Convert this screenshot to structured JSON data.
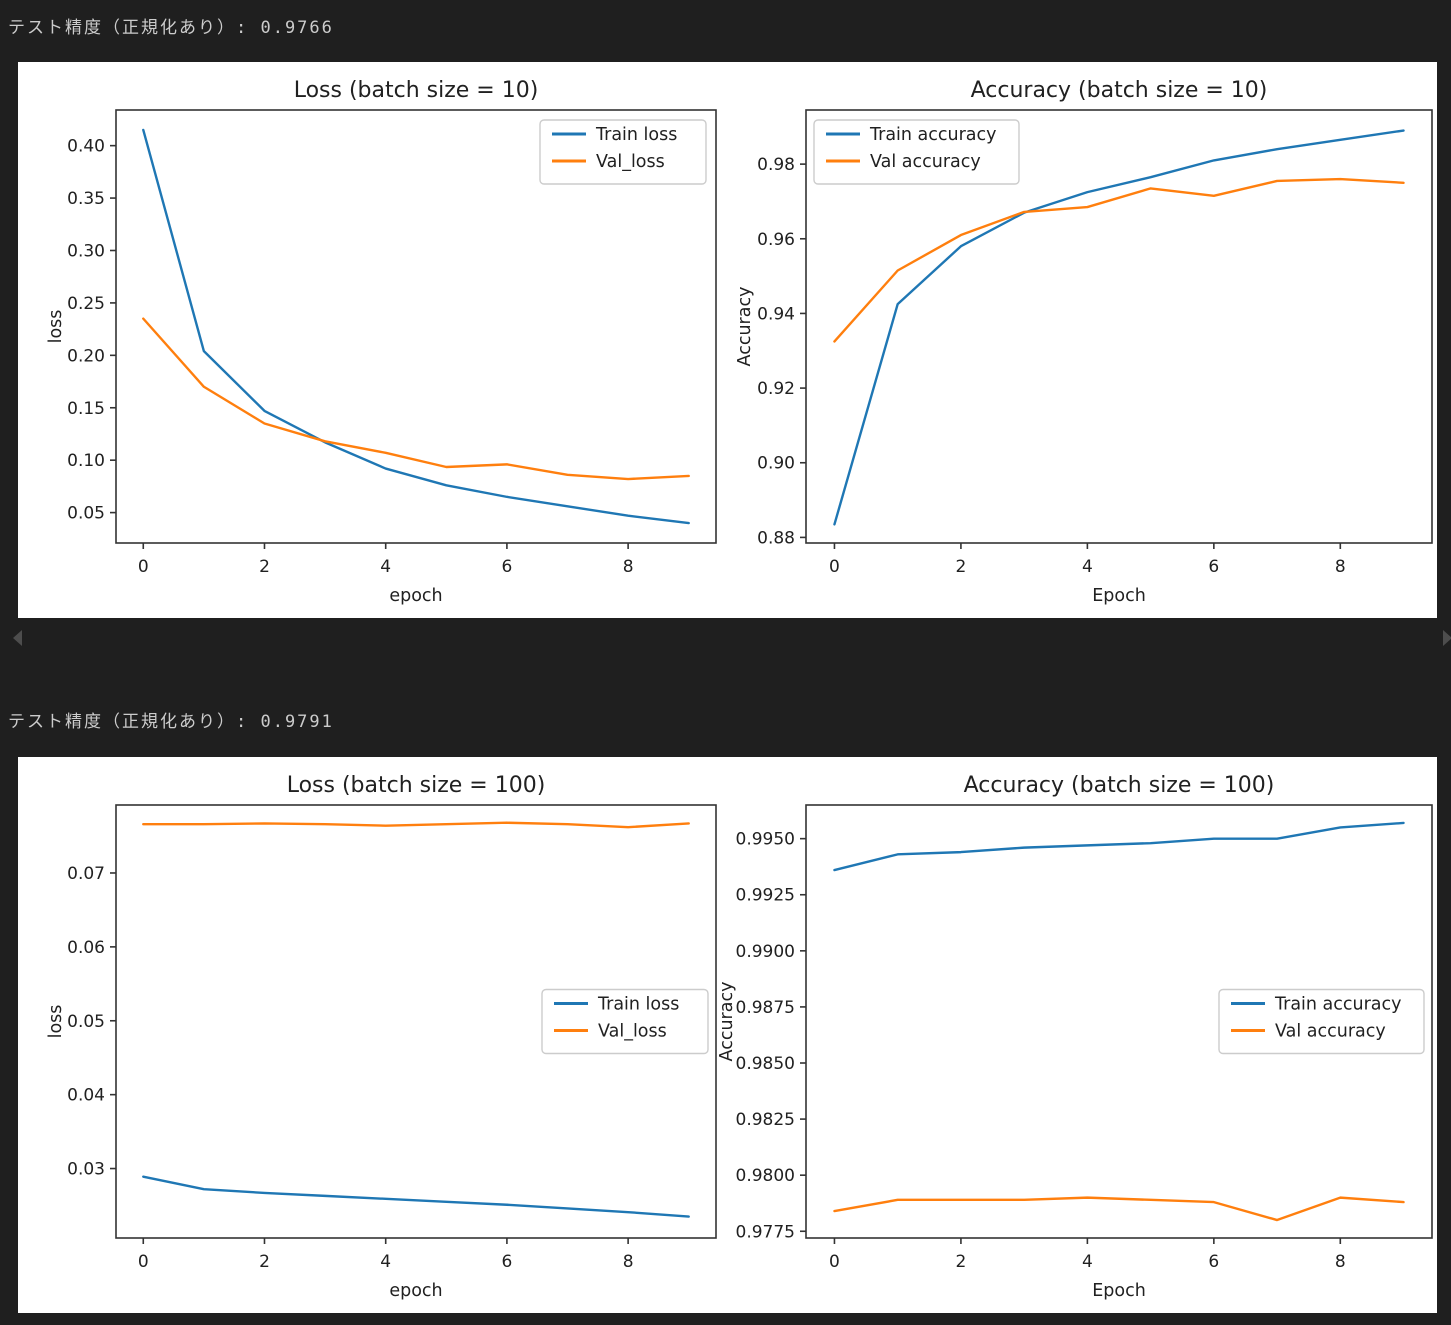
{
  "page": {
    "background": "#1f1f1f",
    "figure_background": "#ffffff"
  },
  "outputs": [
    {
      "text": "テスト精度（正規化あり）: 0.9766",
      "value": "0.9766"
    },
    {
      "text": "テスト精度（正規化あり）: 0.9791",
      "value": "0.9791"
    }
  ],
  "scroll_arrows": {
    "left": "left-triangle",
    "right": "right-triangle",
    "color": "#4d4d4d"
  },
  "colors": {
    "train": "#1f77b4",
    "val": "#ff7f0e",
    "chart_text": "#212121",
    "spine": "#333333",
    "legend_border": "#cccccc",
    "legend_bg": "#ffffff"
  },
  "chart_data": [
    {
      "id": "loss-batch-10",
      "type": "line",
      "title": "Loss (batch size = 10)",
      "xlabel": "epoch",
      "ylabel": "loss",
      "x": [
        0,
        1,
        2,
        3,
        4,
        5,
        6,
        7,
        8,
        9
      ],
      "xlim": [
        -0.45,
        9.45
      ],
      "ylim": [
        0.021,
        0.434
      ],
      "grid": false,
      "xticks": [
        {
          "v": 0,
          "label": "0"
        },
        {
          "v": 2,
          "label": "2"
        },
        {
          "v": 4,
          "label": "4"
        },
        {
          "v": 6,
          "label": "6"
        },
        {
          "v": 8,
          "label": "8"
        }
      ],
      "yticks": [
        {
          "v": 0.05,
          "label": "0.05"
        },
        {
          "v": 0.1,
          "label": "0.10"
        },
        {
          "v": 0.15,
          "label": "0.15"
        },
        {
          "v": 0.2,
          "label": "0.20"
        },
        {
          "v": 0.25,
          "label": "0.25"
        },
        {
          "v": 0.3,
          "label": "0.30"
        },
        {
          "v": 0.35,
          "label": "0.35"
        },
        {
          "v": 0.4,
          "label": "0.40"
        }
      ],
      "legend": "upper-right",
      "series": [
        {
          "name": "Train loss",
          "color_key": "train",
          "values": [
            0.415,
            0.204,
            0.147,
            0.117,
            0.092,
            0.076,
            0.065,
            0.056,
            0.047,
            0.04
          ]
        },
        {
          "name": "Val_loss",
          "color_key": "val",
          "values": [
            0.235,
            0.17,
            0.135,
            0.118,
            0.107,
            0.0935,
            0.096,
            0.086,
            0.082,
            0.085
          ]
        }
      ]
    },
    {
      "id": "accuracy-batch-10",
      "type": "line",
      "title": "Accuracy (batch size = 10)",
      "xlabel": "Epoch",
      "ylabel": "Accuracy",
      "x": [
        0,
        1,
        2,
        3,
        4,
        5,
        6,
        7,
        8,
        9
      ],
      "xlim": [
        -0.45,
        9.45
      ],
      "ylim": [
        0.8785,
        0.9945
      ],
      "grid": false,
      "xticks": [
        {
          "v": 0,
          "label": "0"
        },
        {
          "v": 2,
          "label": "2"
        },
        {
          "v": 4,
          "label": "4"
        },
        {
          "v": 6,
          "label": "6"
        },
        {
          "v": 8,
          "label": "8"
        }
      ],
      "yticks": [
        {
          "v": 0.88,
          "label": "0.88"
        },
        {
          "v": 0.9,
          "label": "0.90"
        },
        {
          "v": 0.92,
          "label": "0.92"
        },
        {
          "v": 0.94,
          "label": "0.94"
        },
        {
          "v": 0.96,
          "label": "0.96"
        },
        {
          "v": 0.98,
          "label": "0.98"
        }
      ],
      "legend": "upper-left",
      "series": [
        {
          "name": "Train accuracy",
          "color_key": "train",
          "values": [
            0.8835,
            0.9425,
            0.958,
            0.967,
            0.9725,
            0.9765,
            0.981,
            0.984,
            0.9865,
            0.989
          ]
        },
        {
          "name": "Val accuracy",
          "color_key": "val",
          "values": [
            0.9325,
            0.9515,
            0.961,
            0.9672,
            0.9685,
            0.9735,
            0.9715,
            0.9755,
            0.976,
            0.975
          ]
        }
      ]
    },
    {
      "id": "loss-batch-100",
      "type": "line",
      "title": "Loss (batch size = 100)",
      "xlabel": "epoch",
      "ylabel": "loss",
      "x": [
        0,
        1,
        2,
        3,
        4,
        5,
        6,
        7,
        8,
        9
      ],
      "xlim": [
        -0.45,
        9.45
      ],
      "ylim": [
        0.0206,
        0.0792
      ],
      "grid": false,
      "xticks": [
        {
          "v": 0,
          "label": "0"
        },
        {
          "v": 2,
          "label": "2"
        },
        {
          "v": 4,
          "label": "4"
        },
        {
          "v": 6,
          "label": "6"
        },
        {
          "v": 8,
          "label": "8"
        }
      ],
      "yticks": [
        {
          "v": 0.03,
          "label": "0.03"
        },
        {
          "v": 0.04,
          "label": "0.04"
        },
        {
          "v": 0.05,
          "label": "0.05"
        },
        {
          "v": 0.06,
          "label": "0.06"
        },
        {
          "v": 0.07,
          "label": "0.07"
        }
      ],
      "legend": "center-right",
      "series": [
        {
          "name": "Train loss",
          "color_key": "train",
          "values": [
            0.0289,
            0.0272,
            0.0267,
            0.0263,
            0.0259,
            0.0255,
            0.0251,
            0.0246,
            0.0241,
            0.0235
          ]
        },
        {
          "name": "Val_loss",
          "color_key": "val",
          "values": [
            0.0766,
            0.0766,
            0.0767,
            0.0766,
            0.0764,
            0.0766,
            0.0768,
            0.0766,
            0.0762,
            0.0767
          ]
        }
      ]
    },
    {
      "id": "accuracy-batch-100",
      "type": "line",
      "title": "Accuracy (batch size = 100)",
      "xlabel": "Epoch",
      "ylabel": "Accuracy",
      "x": [
        0,
        1,
        2,
        3,
        4,
        5,
        6,
        7,
        8,
        9
      ],
      "xlim": [
        -0.45,
        9.45
      ],
      "ylim": [
        0.9772,
        0.9965
      ],
      "grid": false,
      "xticks": [
        {
          "v": 0,
          "label": "0"
        },
        {
          "v": 2,
          "label": "2"
        },
        {
          "v": 4,
          "label": "4"
        },
        {
          "v": 6,
          "label": "6"
        },
        {
          "v": 8,
          "label": "8"
        }
      ],
      "yticks": [
        {
          "v": 0.9775,
          "label": "0.9775"
        },
        {
          "v": 0.98,
          "label": "0.9800"
        },
        {
          "v": 0.9825,
          "label": "0.9825"
        },
        {
          "v": 0.985,
          "label": "0.9850"
        },
        {
          "v": 0.9875,
          "label": "0.9875"
        },
        {
          "v": 0.99,
          "label": "0.9900"
        },
        {
          "v": 0.9925,
          "label": "0.9925"
        },
        {
          "v": 0.995,
          "label": "0.9950"
        }
      ],
      "legend": "center-right",
      "series": [
        {
          "name": "Train accuracy",
          "color_key": "train",
          "values": [
            0.9936,
            0.9943,
            0.9944,
            0.9946,
            0.9947,
            0.9948,
            0.995,
            0.995,
            0.9955,
            0.9957
          ]
        },
        {
          "name": "Val accuracy",
          "color_key": "val",
          "values": [
            0.9784,
            0.9789,
            0.9789,
            0.9789,
            0.979,
            0.9789,
            0.9788,
            0.978,
            0.979,
            0.9788
          ]
        }
      ]
    }
  ]
}
